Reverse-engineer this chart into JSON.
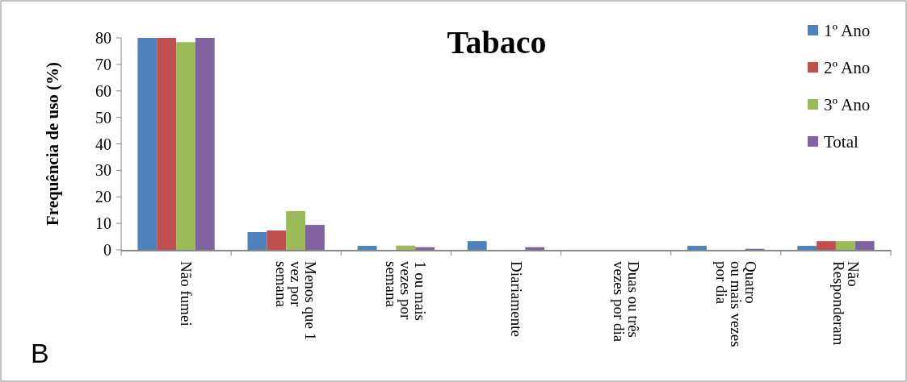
{
  "chart_data": {
    "type": "bar",
    "title": "Tabaco",
    "ylabel": "Frequência de uso (%)",
    "categories": [
      "Não fumei",
      "Menos que 1\nvez por\nsemana",
      "1 ou mais\nvezes por\nsemana",
      "Diariamente",
      "Duas ou três\nvezes por dia",
      "Quatro\nou mais vezes\npor dia",
      "Não\nResponderam"
    ],
    "series": [
      {
        "name": "1º Ano",
        "color": "#4f81bd",
        "values": [
          80,
          6.7,
          1.5,
          3.3,
          0,
          1.5,
          1.5
        ]
      },
      {
        "name": "2º Ano",
        "color": "#c0504d",
        "values": [
          80,
          7.3,
          0,
          0,
          0,
          0,
          3.3
        ]
      },
      {
        "name": "3º Ano",
        "color": "#9bbb59",
        "values": [
          78.4,
          14.6,
          1.6,
          0,
          0,
          0,
          3.3
        ]
      },
      {
        "name": "Total",
        "color": "#8064a2",
        "values": [
          80,
          9.4,
          1,
          1,
          0,
          0.4,
          3.3
        ]
      }
    ],
    "ylim": [
      0,
      80
    ],
    "yticks": [
      0,
      10,
      20,
      30,
      40,
      50,
      60,
      70,
      80
    ],
    "grid": false,
    "legend": "top right",
    "annotations": [
      "B"
    ]
  }
}
